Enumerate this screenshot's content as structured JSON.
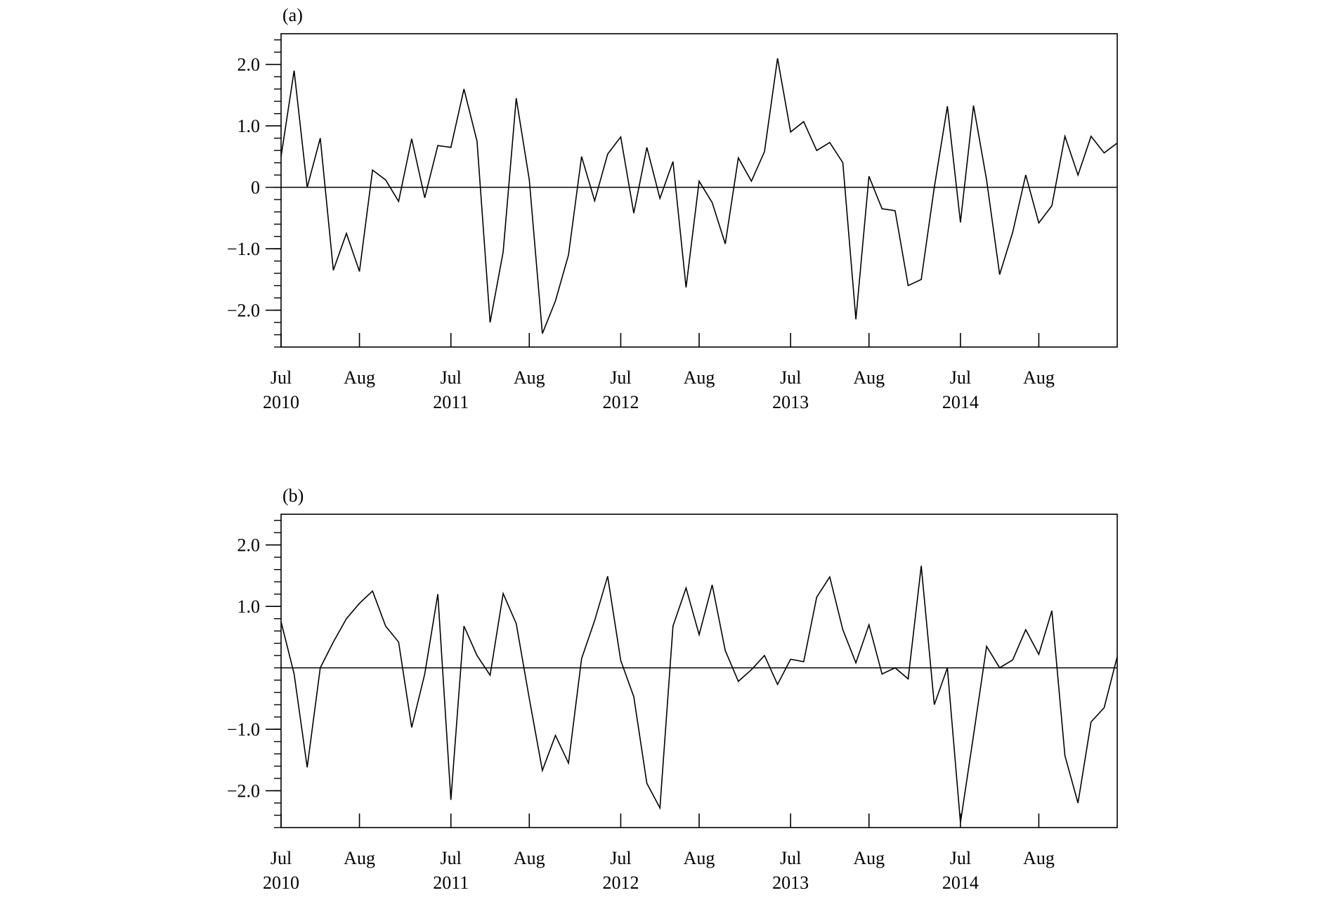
{
  "chart_data": [
    {
      "type": "line",
      "panel_label": "(a)",
      "ylim": [
        -2.6,
        2.5
      ],
      "yticks": [
        {
          "value": 2.0,
          "label": "2.0"
        },
        {
          "value": 1.0,
          "label": "1.0"
        },
        {
          "value": 0,
          "label": "0"
        },
        {
          "value": -1.0,
          "label": "−1.0"
        },
        {
          "value": -2.0,
          "label": "−2.0"
        }
      ],
      "xticks": [
        {
          "index": 0,
          "month": "Jul",
          "year": "2010"
        },
        {
          "index": 6,
          "month": "Aug",
          "year": ""
        },
        {
          "index": 13,
          "month": "Jul",
          "year": "2011"
        },
        {
          "index": 19,
          "month": "Aug",
          "year": ""
        },
        {
          "index": 26,
          "month": "Jul",
          "year": "2012"
        },
        {
          "index": 32,
          "month": "Aug",
          "year": ""
        },
        {
          "index": 39,
          "month": "Jul",
          "year": "2013"
        },
        {
          "index": 45,
          "month": "Aug",
          "year": ""
        },
        {
          "index": 52,
          "month": "Jul",
          "year": "2014"
        },
        {
          "index": 58,
          "month": "Aug",
          "year": ""
        }
      ],
      "zero_line": true,
      "values": [
        0.5,
        1.9,
        0.0,
        0.8,
        -1.35,
        -0.75,
        -1.37,
        0.28,
        0.12,
        -0.23,
        0.79,
        -0.17,
        0.68,
        0.65,
        1.6,
        0.75,
        -2.2,
        -1.05,
        1.45,
        0.12,
        -2.38,
        -1.85,
        -1.1,
        0.5,
        -0.22,
        0.54,
        0.82,
        -0.42,
        0.65,
        -0.18,
        0.42,
        -1.63,
        0.1,
        -0.25,
        -0.92,
        0.48,
        0.1,
        0.58,
        2.1,
        0.9,
        1.07,
        0.6,
        0.73,
        0.4,
        -2.15,
        0.18,
        -0.35,
        -0.38,
        -1.6,
        -1.5,
        0.0,
        1.32,
        -0.57,
        1.33,
        0.12,
        -1.42,
        -0.73,
        0.2,
        -0.58,
        -0.3,
        0.83,
        0.2,
        0.83,
        0.56,
        0.72
      ]
    },
    {
      "type": "line",
      "panel_label": "(b)",
      "ylim": [
        -2.6,
        2.5
      ],
      "yticks": [
        {
          "value": 2.0,
          "label": "2.0"
        },
        {
          "value": 1.0,
          "label": "1.0"
        },
        {
          "value": -1.0,
          "label": "−1.0"
        },
        {
          "value": -2.0,
          "label": "−2.0"
        }
      ],
      "xticks": [
        {
          "index": 0,
          "month": "Jul",
          "year": "2010"
        },
        {
          "index": 6,
          "month": "Aug",
          "year": ""
        },
        {
          "index": 13,
          "month": "Jul",
          "year": "2011"
        },
        {
          "index": 19,
          "month": "Aug",
          "year": ""
        },
        {
          "index": 26,
          "month": "Jul",
          "year": "2012"
        },
        {
          "index": 32,
          "month": "Aug",
          "year": ""
        },
        {
          "index": 39,
          "month": "Jul",
          "year": "2013"
        },
        {
          "index": 45,
          "month": "Aug",
          "year": ""
        },
        {
          "index": 52,
          "month": "Jul",
          "year": "2014"
        },
        {
          "index": 58,
          "month": "Aug",
          "year": ""
        }
      ],
      "zero_line": true,
      "values": [
        0.75,
        -0.1,
        -1.62,
        0.0,
        0.42,
        0.8,
        1.05,
        1.25,
        0.68,
        0.42,
        -0.97,
        -0.1,
        1.2,
        -2.15,
        0.68,
        0.2,
        -0.12,
        1.21,
        0.72,
        -0.5,
        -1.67,
        -1.1,
        -1.55,
        0.15,
        0.77,
        1.49,
        0.12,
        -0.47,
        -1.88,
        -2.28,
        0.68,
        1.3,
        0.54,
        1.35,
        0.28,
        -0.22,
        -0.03,
        0.2,
        -0.27,
        0.14,
        0.1,
        1.15,
        1.48,
        0.62,
        0.08,
        0.7,
        -0.1,
        0.0,
        -0.18,
        1.66,
        -0.6,
        0.0,
        -2.52,
        -1.1,
        0.35,
        0.0,
        0.13,
        0.62,
        0.22,
        0.93,
        -1.43,
        -2.2,
        -0.88,
        -0.65,
        0.18
      ]
    }
  ]
}
